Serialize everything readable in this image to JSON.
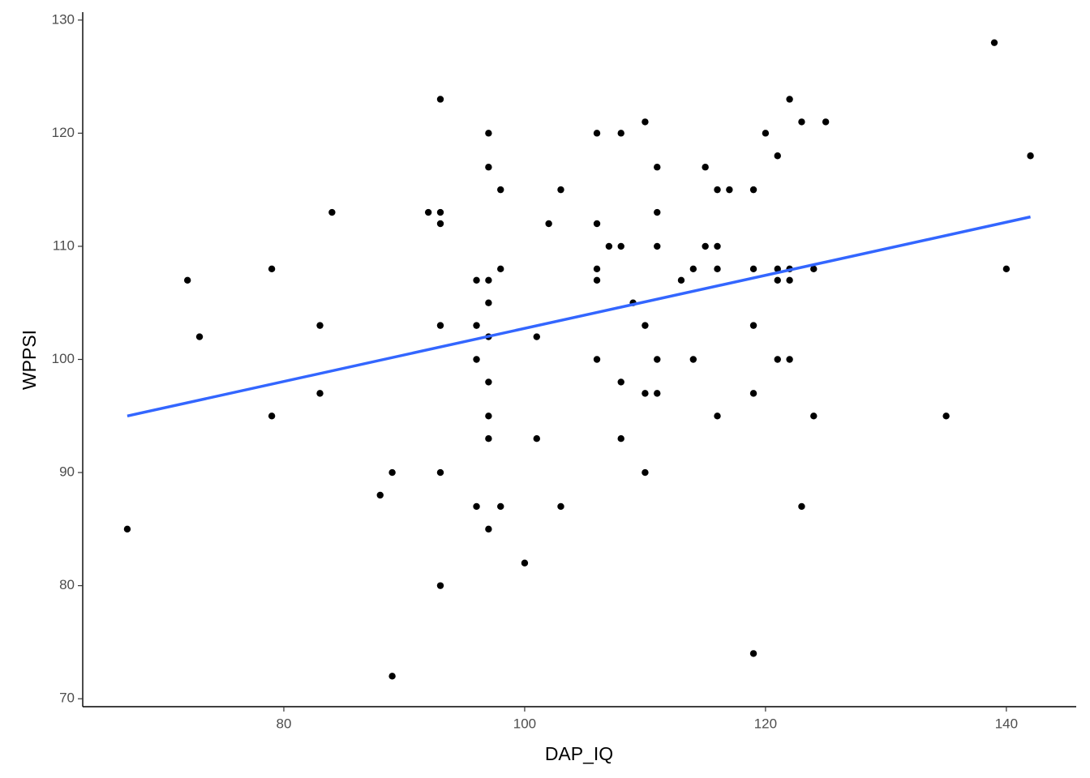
{
  "chart_data": {
    "type": "scatter",
    "x_label": "DAP_IQ",
    "y_label": "WPPSI",
    "x": [
      67,
      72,
      73,
      79,
      79,
      83,
      83,
      84,
      88,
      89,
      89,
      92,
      93,
      93,
      93,
      93,
      93,
      93,
      96,
      96,
      96,
      96,
      97,
      97,
      97,
      97,
      97,
      97,
      97,
      97,
      97,
      98,
      98,
      98,
      100,
      101,
      101,
      102,
      103,
      103,
      106,
      106,
      106,
      106,
      106,
      107,
      108,
      108,
      108,
      108,
      109,
      110,
      110,
      110,
      110,
      111,
      111,
      111,
      111,
      111,
      113,
      114,
      114,
      115,
      115,
      116,
      116,
      116,
      116,
      117,
      119,
      119,
      119,
      119,
      119,
      120,
      121,
      121,
      121,
      121,
      122,
      122,
      122,
      122,
      123,
      123,
      124,
      124,
      125,
      135,
      139,
      140,
      142
    ],
    "values": [
      85,
      107,
      102,
      108,
      95,
      103,
      97,
      113,
      88,
      90,
      72,
      113,
      123,
      113,
      112,
      103,
      90,
      80,
      107,
      103,
      100,
      87,
      120,
      117,
      107,
      105,
      102,
      98,
      95,
      93,
      85,
      115,
      108,
      87,
      82,
      102,
      93,
      112,
      115,
      87,
      120,
      112,
      108,
      107,
      100,
      110,
      120,
      110,
      98,
      93,
      105,
      121,
      103,
      97,
      90,
      117,
      113,
      110,
      100,
      97,
      107,
      108,
      100,
      117,
      110,
      115,
      110,
      108,
      95,
      115,
      115,
      108,
      103,
      97,
      74,
      120,
      118,
      108,
      107,
      100,
      123,
      108,
      107,
      100,
      121,
      87,
      108,
      95,
      121,
      95,
      128,
      108,
      118
    ],
    "color": "#000000",
    "fit_line": {
      "x": [
        67,
        142
      ],
      "values": [
        95.0,
        112.6
      ],
      "color": "#3366ff"
    },
    "xlim": [
      63.3,
      145.8
    ],
    "ylim": [
      69.3,
      130.7
    ],
    "xticks": [
      80,
      100,
      120,
      140
    ],
    "yticks": [
      70,
      80,
      90,
      100,
      110,
      120,
      130
    ],
    "grid": false
  }
}
